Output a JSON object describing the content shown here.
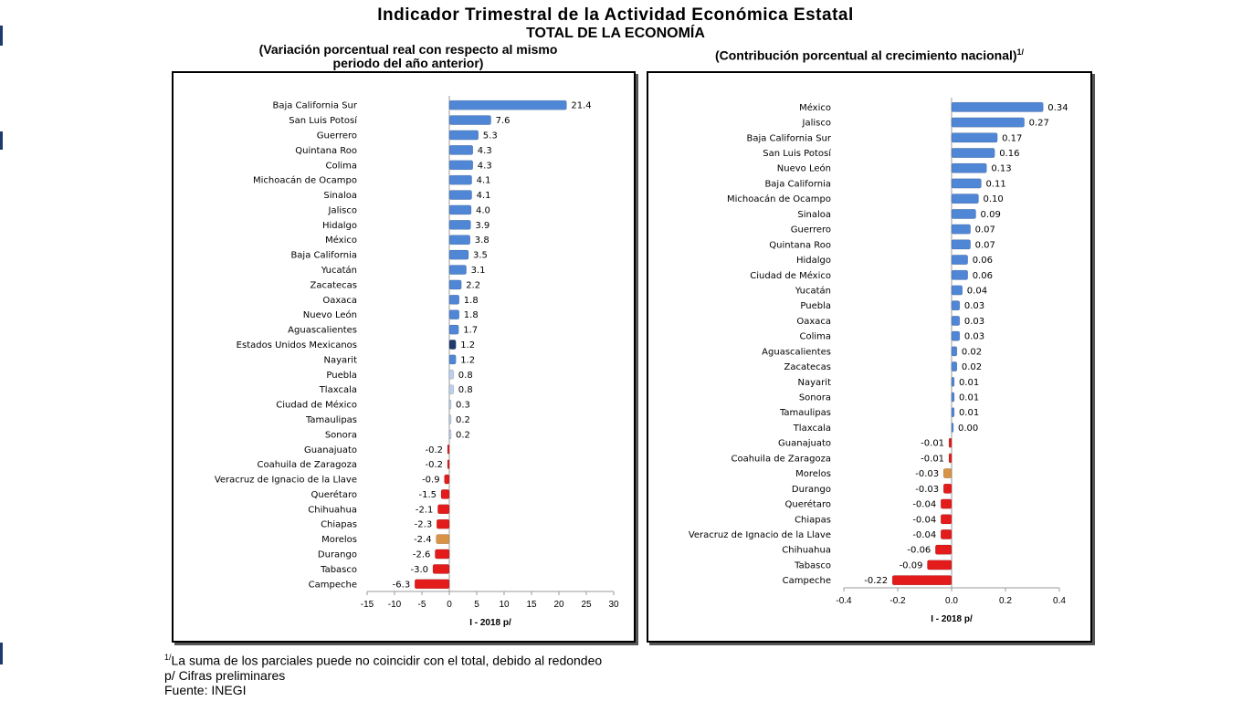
{
  "header": {
    "title": "Indicador Trimestral de la Actividad Económica Estatal",
    "subtitle": "TOTAL DE LA ECONOMÍA",
    "left_subtitle_line1": "(Variación porcentual real con respecto al mismo",
    "left_subtitle_line2": "periodo del año anterior)",
    "right_subtitle": "(Contribución porcentual al crecimiento nacional)",
    "right_subtitle_sup": "1/"
  },
  "footnotes": {
    "note1_sup": "1/",
    "note1": "La suma de los parciales puede no coincidir con el total, debido al redondeo",
    "note2": "p/ Cifras preliminares",
    "note3": "Fuente: INEGI"
  },
  "colors": {
    "positive": "#4f86d6",
    "negative": "#e41b1b",
    "highlight_total": "#1f3b6e",
    "highlight_morelos": "#d99347",
    "small_positive": "#bcd0ee"
  },
  "chart_data": [
    {
      "type": "bar",
      "orientation": "horizontal",
      "xlabel": "I - 2018 p/",
      "xlim": [
        -15,
        30
      ],
      "xticks": [
        -15,
        -10,
        -5,
        0,
        5,
        10,
        15,
        20,
        25,
        30
      ],
      "categories": [
        "Baja California Sur",
        "San Luis Potosí",
        "Guerrero",
        "Quintana Roo",
        "Colima",
        "Michoacán de Ocampo",
        "Sinaloa",
        "Jalisco",
        "Hidalgo",
        "México",
        "Baja California",
        "Yucatán",
        "Zacatecas",
        "Oaxaca",
        "Nuevo León",
        "Aguascalientes",
        "Estados Unidos Mexicanos",
        "Nayarit",
        "Puebla",
        "Tlaxcala",
        "Ciudad de México",
        "Tamaulipas",
        "Sonora",
        "Guanajuato",
        "Coahuila de Zaragoza",
        "Veracruz de Ignacio de la Llave",
        "Querétaro",
        "Chihuahua",
        "Chiapas",
        "Morelos",
        "Durango",
        "Tabasco",
        "Campeche"
      ],
      "values": [
        21.4,
        7.6,
        5.3,
        4.3,
        4.3,
        4.1,
        4.1,
        4.0,
        3.9,
        3.8,
        3.5,
        3.1,
        2.2,
        1.8,
        1.8,
        1.7,
        1.2,
        1.2,
        0.8,
        0.8,
        0.3,
        0.2,
        0.2,
        -0.2,
        -0.2,
        -0.9,
        -1.5,
        -2.1,
        -2.3,
        -2.4,
        -2.6,
        -3.0,
        -6.3
      ],
      "value_labels": [
        "21.4",
        "7.6",
        "5.3",
        "4.3",
        "4.3",
        "4.1",
        "4.1",
        "4.0",
        "3.9",
        "3.8",
        "3.5",
        "3.1",
        "2.2",
        "1.8",
        "1.8",
        "1.7",
        "1.2",
        "1.2",
        "0.8",
        "0.8",
        "0.3",
        "0.2",
        "0.2",
        "-0.2",
        "-0.2",
        "-0.9",
        "-1.5",
        "-2.1",
        "-2.3",
        "-2.4",
        "-2.6",
        "-3.0",
        "-6.3"
      ],
      "highlight": {
        "Estados Unidos Mexicanos": "highlight_total",
        "Morelos": "highlight_morelos"
      }
    },
    {
      "type": "bar",
      "orientation": "horizontal",
      "xlabel": "I - 2018 p/",
      "xlim": [
        -0.4,
        0.4
      ],
      "xticks": [
        -0.4,
        -0.2,
        0.0,
        0.2,
        0.4
      ],
      "xtick_labels": [
        "-0.4",
        "-0.2",
        "0.0",
        "0.2",
        "0.4"
      ],
      "categories": [
        "México",
        "Jalisco",
        "Baja California Sur",
        "San Luis Potosí",
        "Nuevo León",
        "Baja California",
        "Michoacán de Ocampo",
        "Sinaloa",
        "Guerrero",
        "Quintana Roo",
        "Hidalgo",
        "Ciudad de México",
        "Yucatán",
        "Puebla",
        "Oaxaca",
        "Colima",
        "Aguascalientes",
        "Zacatecas",
        "Nayarit",
        "Sonora",
        "Tamaulipas",
        "Tlaxcala",
        "Guanajuato",
        "Coahuila de Zaragoza",
        "Morelos",
        "Durango",
        "Querétaro",
        "Chiapas",
        "Veracruz de Ignacio de la Llave",
        "Chihuahua",
        "Tabasco",
        "Campeche"
      ],
      "values": [
        0.34,
        0.27,
        0.17,
        0.16,
        0.13,
        0.11,
        0.1,
        0.09,
        0.07,
        0.07,
        0.06,
        0.06,
        0.04,
        0.03,
        0.03,
        0.03,
        0.02,
        0.02,
        0.01,
        0.01,
        0.01,
        0.0,
        -0.01,
        -0.01,
        -0.03,
        -0.03,
        -0.04,
        -0.04,
        -0.04,
        -0.06,
        -0.09,
        -0.22
      ],
      "value_labels": [
        "0.34",
        "0.27",
        "0.17",
        "0.16",
        "0.13",
        "0.11",
        "0.10",
        "0.09",
        "0.07",
        "0.07",
        "0.06",
        "0.06",
        "0.04",
        "0.03",
        "0.03",
        "0.03",
        "0.02",
        "0.02",
        "0.01",
        "0.01",
        "0.01",
        "0.00",
        "-0.01",
        "-0.01",
        "-0.03",
        "-0.03",
        "-0.04",
        "-0.04",
        "-0.04",
        "-0.06",
        "-0.09",
        "-0.22"
      ],
      "highlight": {
        "Morelos": "highlight_morelos"
      }
    }
  ]
}
